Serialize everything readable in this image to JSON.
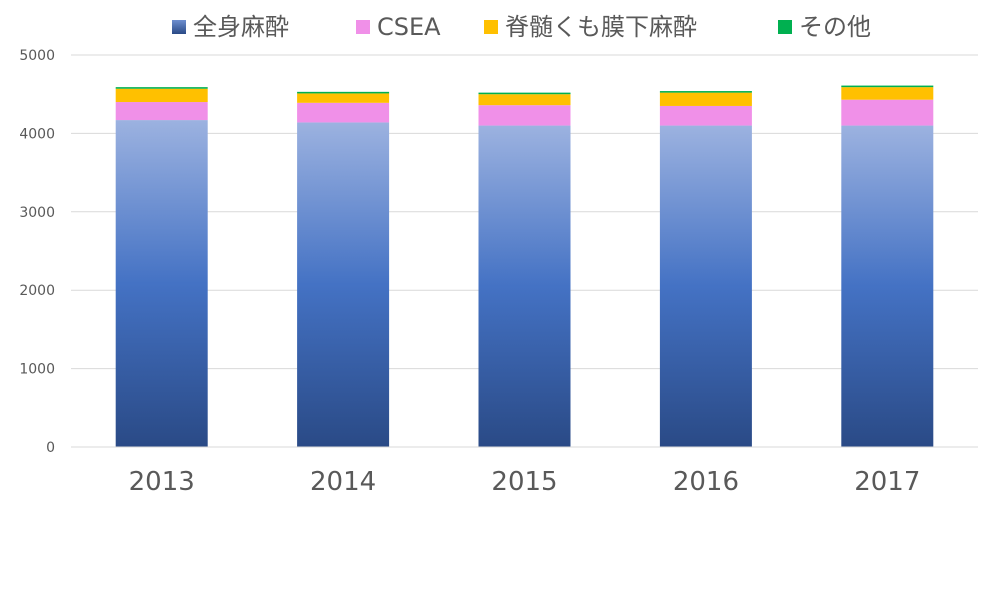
{
  "chart_data": {
    "type": "bar",
    "stacked": true,
    "categories": [
      "2013",
      "2014",
      "2015",
      "2016",
      "2017"
    ],
    "series": [
      {
        "name": "全身麻酔",
        "values": [
          4170,
          4140,
          4100,
          4100,
          4100
        ],
        "color": "#4472C4"
      },
      {
        "name": "CSEA",
        "values": [
          230,
          250,
          260,
          250,
          330
        ],
        "color": "#F090E8"
      },
      {
        "name": "脊髄くも膜下麻酔",
        "values": [
          170,
          120,
          140,
          170,
          160
        ],
        "color": "#FFC000"
      },
      {
        "name": "その他",
        "values": [
          20,
          20,
          20,
          20,
          20
        ],
        "color": "#00B050"
      }
    ],
    "y_ticks": [
      "0",
      "1000",
      "2000",
      "3000",
      "4000",
      "5000"
    ],
    "ylim": [
      0,
      5000
    ],
    "grid": true,
    "legend_position": "top"
  }
}
